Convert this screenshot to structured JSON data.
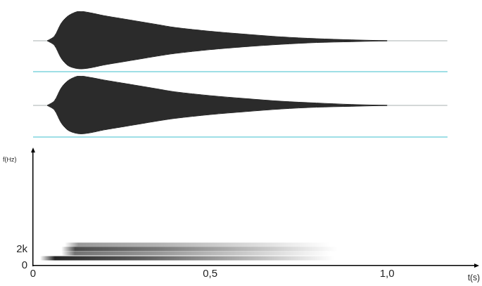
{
  "chart_data": [
    {
      "type": "area",
      "tick_labels": false,
      "color": "#2b2b2b",
      "xlim": [
        0,
        1.17
      ],
      "ylim": [
        -1,
        1
      ],
      "x": [
        0.04,
        0.06,
        0.08,
        0.1,
        0.13,
        0.16,
        0.2,
        0.25,
        0.3,
        0.35,
        0.4,
        0.5,
        0.6,
        0.7,
        0.8,
        0.9,
        1.0
      ],
      "upper": [
        0,
        0.15,
        0.6,
        0.85,
        1.0,
        0.95,
        0.85,
        0.75,
        0.65,
        0.55,
        0.45,
        0.32,
        0.22,
        0.13,
        0.07,
        0.03,
        0
      ],
      "lower": [
        0,
        -0.15,
        -0.6,
        -0.85,
        -0.95,
        -0.92,
        -0.82,
        -0.72,
        -0.62,
        -0.52,
        -0.43,
        -0.3,
        -0.2,
        -0.12,
        -0.06,
        -0.03,
        0
      ]
    },
    {
      "type": "area",
      "tick_labels": false,
      "color": "#2b2b2b",
      "xlim": [
        0,
        1.17
      ],
      "ylim": [
        -1,
        1
      ],
      "x": [
        0.04,
        0.06,
        0.08,
        0.1,
        0.13,
        0.16,
        0.2,
        0.25,
        0.3,
        0.35,
        0.4,
        0.5,
        0.6,
        0.7,
        0.8,
        0.9,
        1.0
      ],
      "upper": [
        0,
        0.15,
        0.6,
        0.85,
        1.0,
        0.95,
        0.86,
        0.76,
        0.66,
        0.56,
        0.46,
        0.33,
        0.23,
        0.14,
        0.08,
        0.03,
        0
      ],
      "lower": [
        0,
        -0.15,
        -0.6,
        -0.85,
        -0.96,
        -0.93,
        -0.83,
        -0.73,
        -0.63,
        -0.53,
        -0.44,
        -0.31,
        -0.21,
        -0.12,
        -0.06,
        -0.03,
        0
      ]
    },
    {
      "type": "spectrogram",
      "x_label": "t(s)",
      "y_label": "f(Hz)",
      "color": "#000000",
      "xlim": [
        0,
        1.25
      ],
      "ylim": [
        0,
        14000
      ],
      "xticks": [
        0,
        {
          "value": 0.5,
          "label": "0,5"
        },
        {
          "value": 1,
          "label": "1,0"
        }
      ],
      "yticks": [
        0,
        {
          "value": 2000,
          "label": "2k"
        }
      ],
      "bands": [
        {
          "frequency": 900,
          "start": 0.02,
          "end": 0.85,
          "intensity": 0.85
        },
        {
          "frequency": 1500,
          "start": 0.08,
          "end": 0.84,
          "intensity": 0.55
        },
        {
          "frequency": 2050,
          "start": 0.08,
          "end": 0.86,
          "intensity": 0.7
        },
        {
          "frequency": 2550,
          "start": 0.09,
          "end": 0.84,
          "intensity": 0.4
        }
      ]
    }
  ]
}
